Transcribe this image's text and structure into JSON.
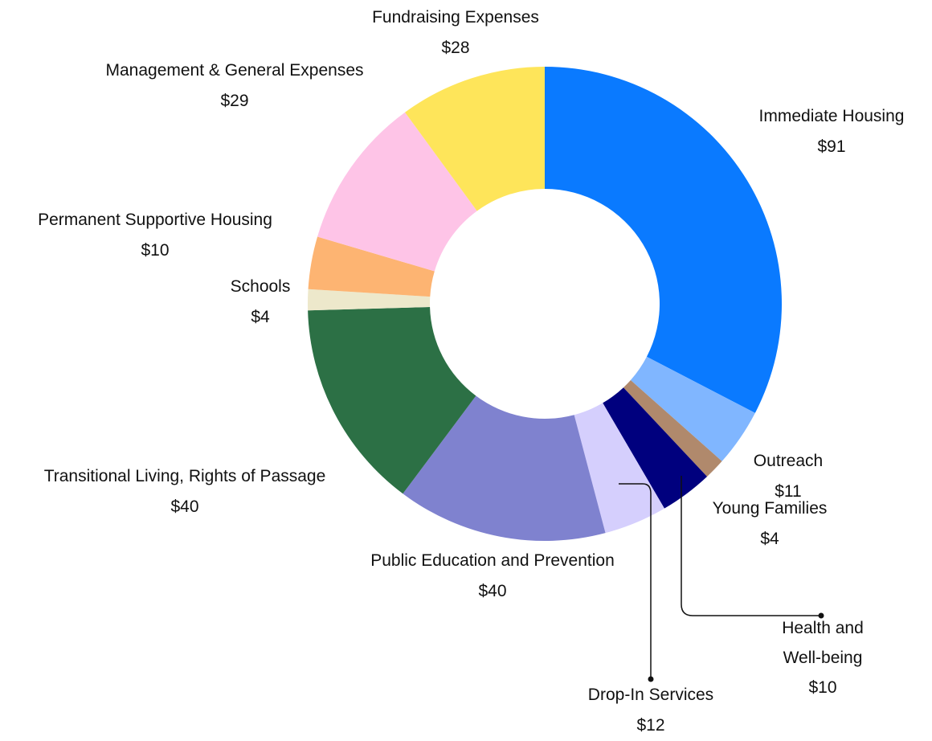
{
  "chart_data": {
    "type": "pie",
    "categories": [
      "Immediate Housing",
      "Outreach",
      "Young Families",
      "Health and Well-being",
      "Drop-In Services",
      "Public Education and Prevention",
      "Transitional Living, Rights of Passage",
      "Schools",
      "Permanent Supportive Housing",
      "Management & General Expenses",
      "Fundraising Expenses"
    ],
    "values": [
      91,
      11,
      4,
      10,
      12,
      40,
      40,
      4,
      10,
      29,
      28
    ],
    "value_labels": [
      "$91",
      "$11",
      "$4",
      "$10",
      "$12",
      "$40",
      "$40",
      "$4",
      "$10",
      "$29",
      "$28"
    ],
    "colors": [
      "#0a7aff",
      "#80b6ff",
      "#b0896c",
      "#00007e",
      "#d5cffd",
      "#7f82cf",
      "#2c7045",
      "#ede8cb",
      "#fdb472",
      "#fec4e7",
      "#fee55a"
    ]
  }
}
